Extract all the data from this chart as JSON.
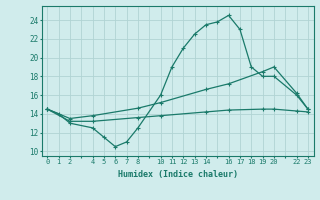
{
  "xlabel": "Humidex (Indice chaleur)",
  "bg_color": "#d0ecec",
  "grid_color": "#b0d4d4",
  "line_color": "#1a7a6a",
  "line1_x": [
    0,
    1,
    2,
    4,
    5,
    6,
    7,
    8,
    10,
    11,
    12,
    13,
    14,
    15,
    16,
    17,
    18,
    19,
    20,
    22,
    23
  ],
  "line1_y": [
    14.5,
    14.0,
    13.0,
    12.5,
    11.5,
    10.5,
    11.0,
    12.5,
    16.0,
    19.0,
    21.0,
    22.5,
    23.5,
    23.8,
    24.5,
    23.0,
    19.0,
    18.0,
    18.0,
    16.0,
    14.5
  ],
  "line2_x": [
    0,
    2,
    4,
    8,
    10,
    14,
    16,
    19,
    20,
    22,
    23
  ],
  "line2_y": [
    14.5,
    13.5,
    13.8,
    14.6,
    15.2,
    16.6,
    17.2,
    18.5,
    19.0,
    16.2,
    14.5
  ],
  "line3_x": [
    0,
    2,
    4,
    8,
    10,
    14,
    16,
    19,
    20,
    22,
    23
  ],
  "line3_y": [
    14.5,
    13.2,
    13.2,
    13.6,
    13.8,
    14.2,
    14.4,
    14.5,
    14.5,
    14.3,
    14.2
  ],
  "ylim": [
    9.5,
    25.5
  ],
  "yticks": [
    10,
    12,
    14,
    16,
    18,
    20,
    22,
    24
  ],
  "xtick_labels": [
    "0",
    "1",
    "2",
    "",
    "4",
    "5",
    "6",
    "7",
    "8",
    "",
    "10",
    "11",
    "12",
    "13",
    "14",
    "",
    "16",
    "17",
    "18",
    "19",
    "20",
    "",
    "22",
    "23"
  ],
  "xtick_positions": [
    0,
    1,
    2,
    3,
    4,
    5,
    6,
    7,
    8,
    9,
    10,
    11,
    12,
    13,
    14,
    15,
    16,
    17,
    18,
    19,
    20,
    21,
    22,
    23
  ],
  "xlim": [
    -0.5,
    23.5
  ]
}
